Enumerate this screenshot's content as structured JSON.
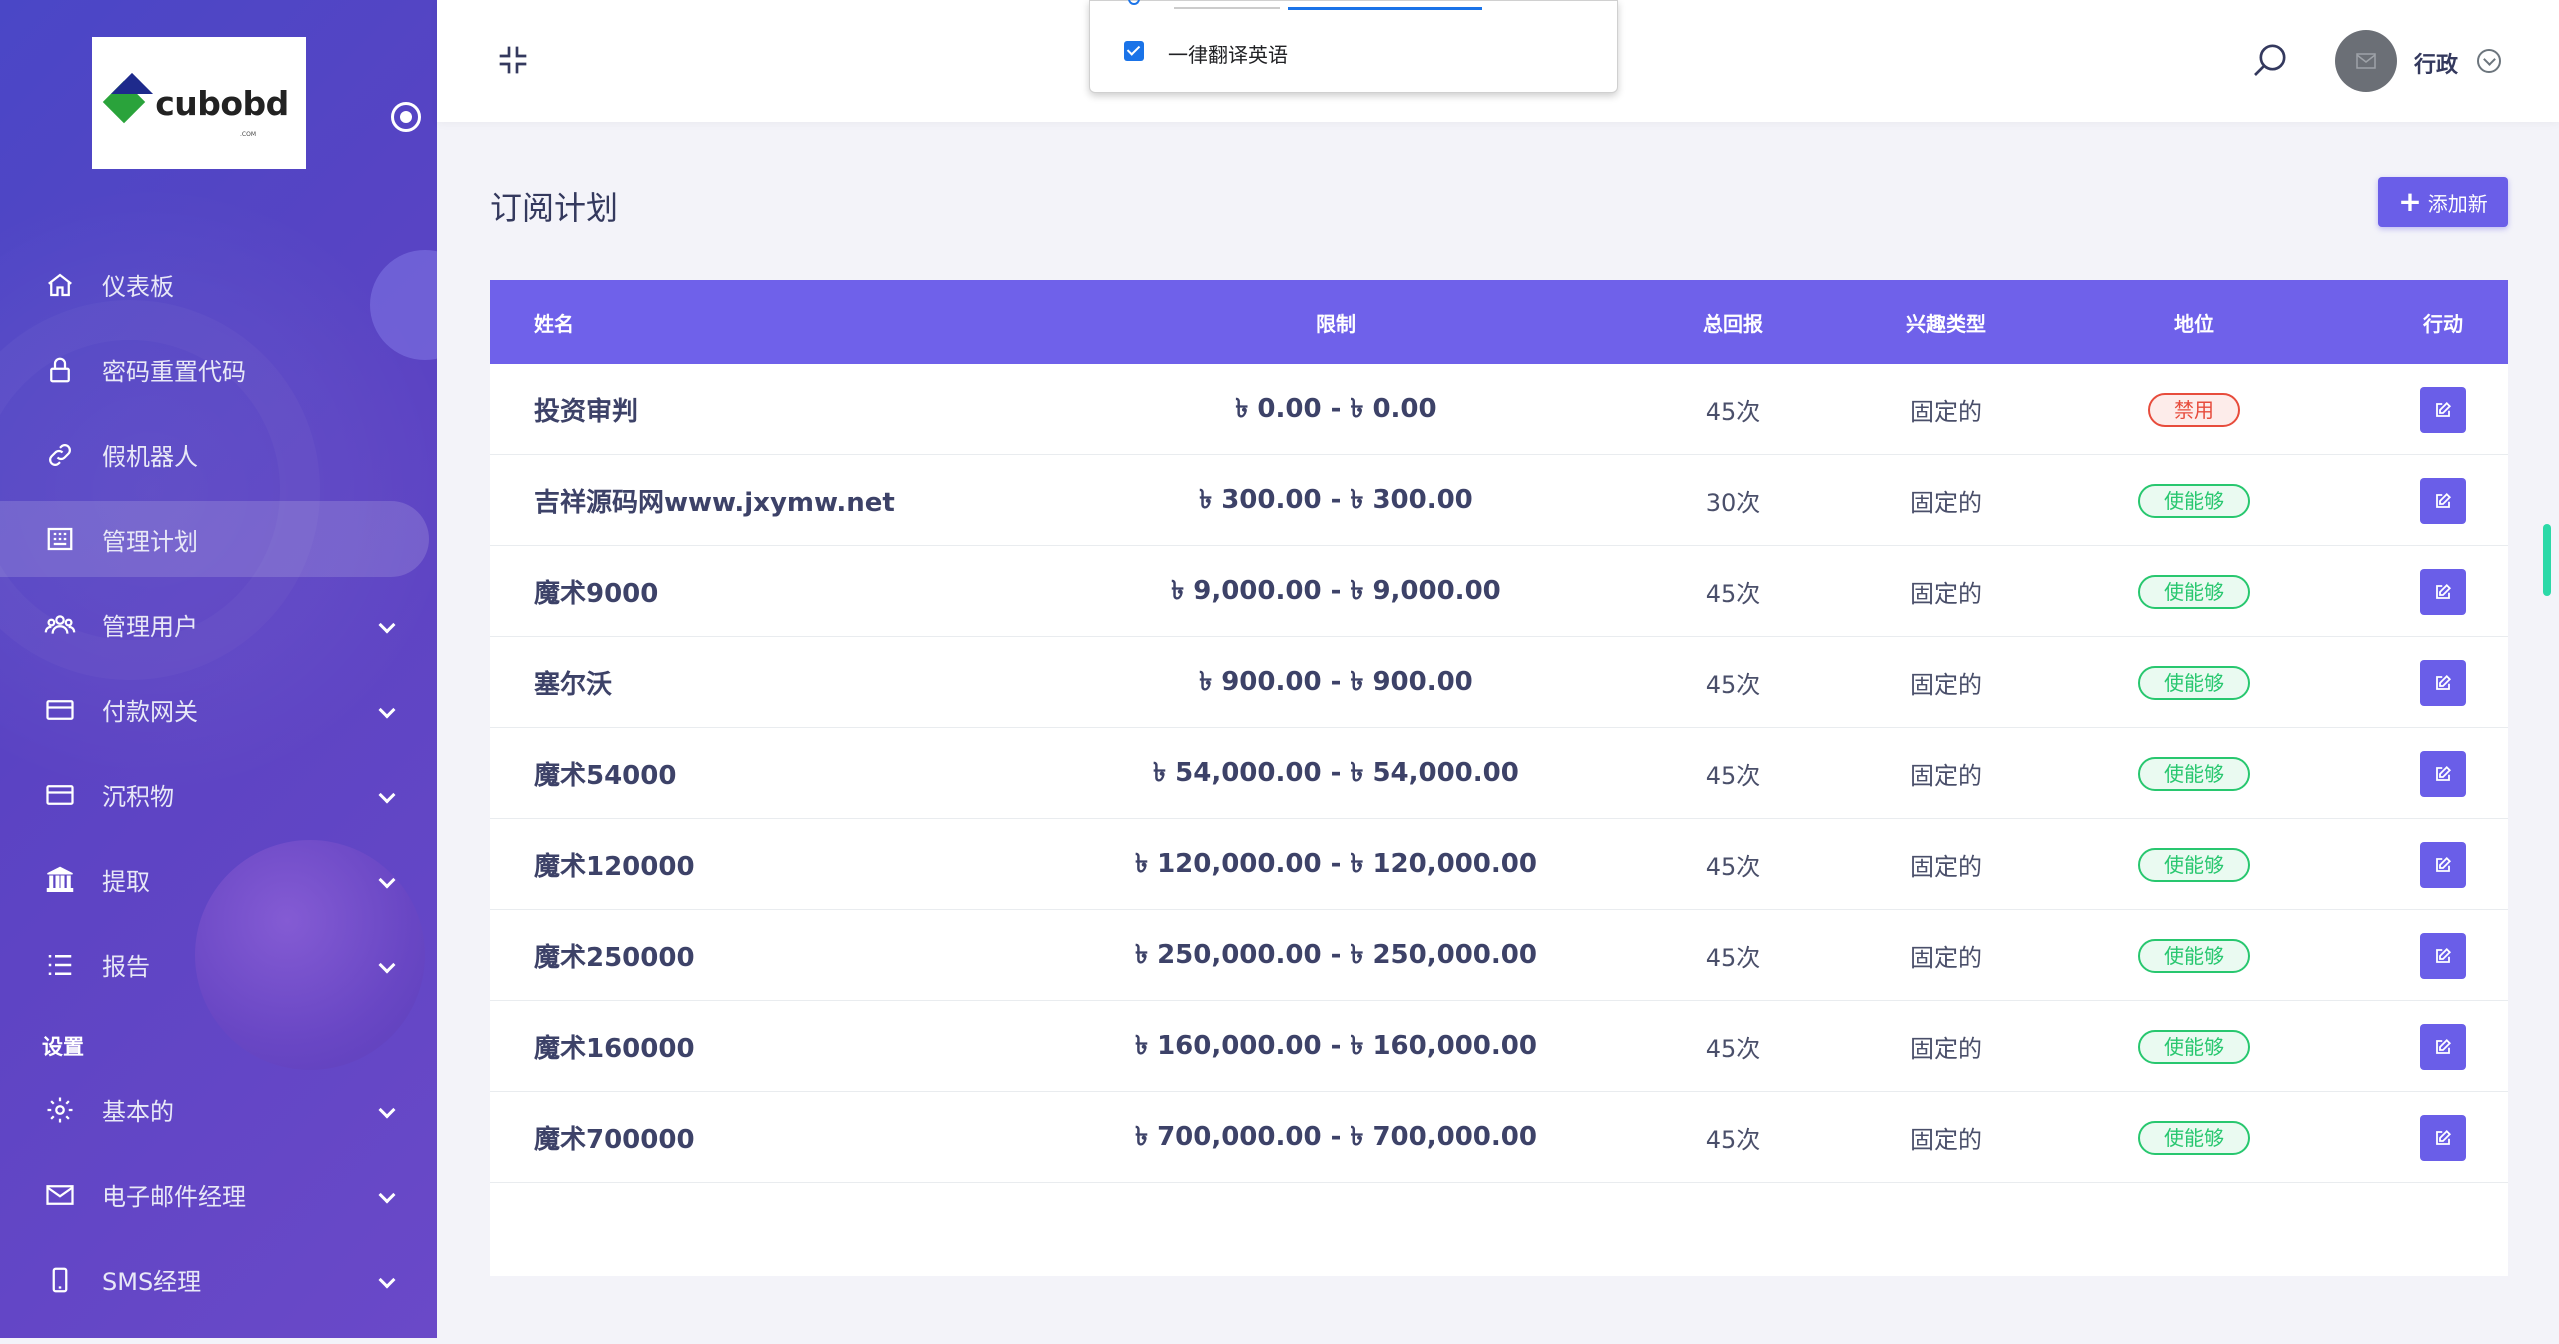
{
  "sidebar": {
    "logo_text": "cubobd",
    "logo_sub": ".COM",
    "items": [
      {
        "label": "仪表板",
        "icon": "home-icon",
        "has_sub": false
      },
      {
        "label": "密码重置代码",
        "icon": "lock-icon",
        "has_sub": false
      },
      {
        "label": "假机器人",
        "icon": "link-icon",
        "has_sub": false
      },
      {
        "label": "管理计划",
        "icon": "building-icon",
        "has_sub": false,
        "active": true
      },
      {
        "label": "管理用户",
        "icon": "users-icon",
        "has_sub": true
      },
      {
        "label": "付款网关",
        "icon": "card-icon",
        "has_sub": true
      },
      {
        "label": "沉积物",
        "icon": "card-icon",
        "has_sub": true
      },
      {
        "label": "提取",
        "icon": "bank-icon",
        "has_sub": true
      },
      {
        "label": "报告",
        "icon": "list-icon",
        "has_sub": true
      }
    ],
    "settings_title": "设置",
    "settings_items": [
      {
        "label": "基本的",
        "icon": "gear-icon",
        "has_sub": true
      },
      {
        "label": "电子邮件经理",
        "icon": "mail-icon",
        "has_sub": true
      },
      {
        "label": "SMS经理",
        "icon": "phone-icon",
        "has_sub": true
      }
    ]
  },
  "topbar": {
    "user_name": "行政"
  },
  "translate_popup": {
    "checkbox_label": "一律翻译英语",
    "checked": true
  },
  "page": {
    "title": "订阅计划",
    "add_button": "添加新"
  },
  "table": {
    "headers": {
      "name": "姓名",
      "limit": "限制",
      "return": "总回报",
      "interest": "兴趣类型",
      "status": "地位",
      "action": "行动"
    },
    "rows": [
      {
        "name": "投资审判",
        "limit": "৳ 0.00 - ৳ 0.00",
        "return": "45次",
        "interest": "固定的",
        "status": "禁用",
        "enabled": false
      },
      {
        "name": "吉祥源码网www.jxymw.net",
        "limit": "৳ 300.00 - ৳ 300.00",
        "return": "30次",
        "interest": "固定的",
        "status": "使能够",
        "enabled": true
      },
      {
        "name": "魔术9000",
        "limit": "৳ 9,000.00 - ৳ 9,000.00",
        "return": "45次",
        "interest": "固定的",
        "status": "使能够",
        "enabled": true
      },
      {
        "name": "塞尔沃",
        "limit": "৳ 900.00 - ৳ 900.00",
        "return": "45次",
        "interest": "固定的",
        "status": "使能够",
        "enabled": true
      },
      {
        "name": "魔术54000",
        "limit": "৳ 54,000.00 - ৳ 54,000.00",
        "return": "45次",
        "interest": "固定的",
        "status": "使能够",
        "enabled": true
      },
      {
        "name": "魔术120000",
        "limit": "৳ 120,000.00 - ৳ 120,000.00",
        "return": "45次",
        "interest": "固定的",
        "status": "使能够",
        "enabled": true
      },
      {
        "name": "魔术250000",
        "limit": "৳ 250,000.00 - ৳ 250,000.00",
        "return": "45次",
        "interest": "固定的",
        "status": "使能够",
        "enabled": true
      },
      {
        "name": "魔术160000",
        "limit": "৳ 160,000.00 - ৳ 160,000.00",
        "return": "45次",
        "interest": "固定的",
        "status": "使能够",
        "enabled": true
      },
      {
        "name": "魔术700000",
        "limit": "৳ 700,000.00 - ৳ 700,000.00",
        "return": "45次",
        "interest": "固定的",
        "status": "使能够",
        "enabled": true
      }
    ]
  },
  "colors": {
    "accent": "#6a5ee8",
    "table_header": "#6f61ea",
    "sidebar": "#5346c4",
    "enabled": "#28c76f",
    "disabled": "#e74c3c"
  }
}
